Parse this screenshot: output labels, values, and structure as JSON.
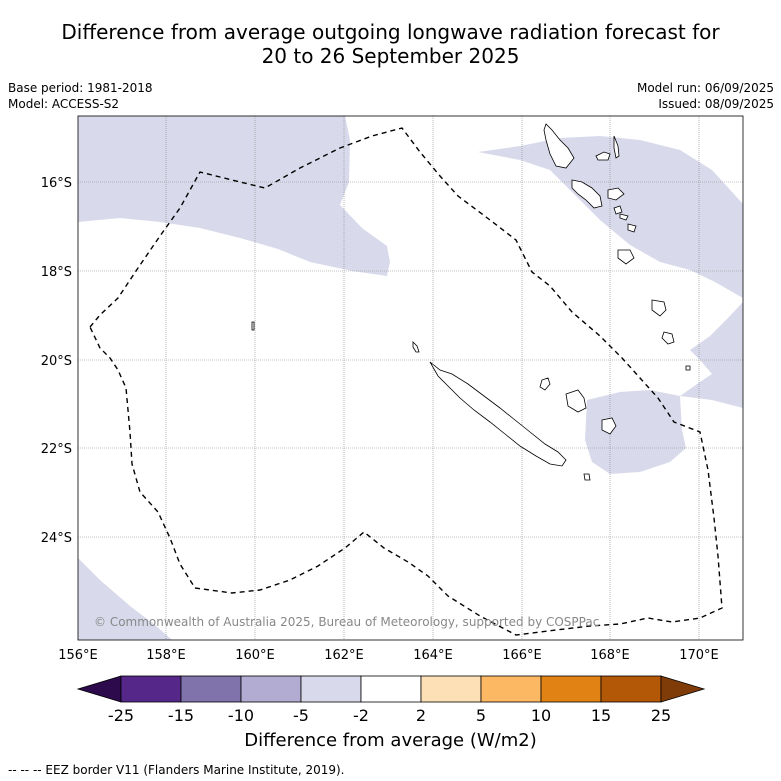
{
  "title_line1": "Difference from average outgoing longwave radiation forecast for",
  "title_line2": "20 to 26 September 2025",
  "meta_left": [
    "Base period: 1981-2018",
    "Model: ACCESS-S2"
  ],
  "meta_right": [
    "Model run: 06/09/2025",
    "Issued: 08/09/2025"
  ],
  "copyright": "© Commonwealth of Australia 2025, Bureau of Meteorology, supported by COSPPac",
  "map_data": {
    "lon_ticks": [
      "156°E",
      "158°E",
      "160°E",
      "162°E",
      "164°E",
      "166°E",
      "168°E",
      "170°E"
    ],
    "lat_ticks": [
      "16°S",
      "18°S",
      "20°S",
      "22°S",
      "24°S"
    ],
    "grid": true
  },
  "colorbar": {
    "title": "Difference from average (W/m2)",
    "tick_labels": [
      "-25",
      "-15",
      "-10",
      "-5",
      "-2",
      "2",
      "5",
      "10",
      "15",
      "25"
    ],
    "colors": [
      "#2d0a4b",
      "#542788",
      "#8073ac",
      "#b2abd2",
      "#d8daeb",
      "#ffffff",
      "#fee0b6",
      "#fdb863",
      "#e08214",
      "#b35806",
      "#7f3b08"
    ]
  },
  "footnote": "-- -- -- EEZ border V11 (Flanders Marine Institute, 2019)."
}
